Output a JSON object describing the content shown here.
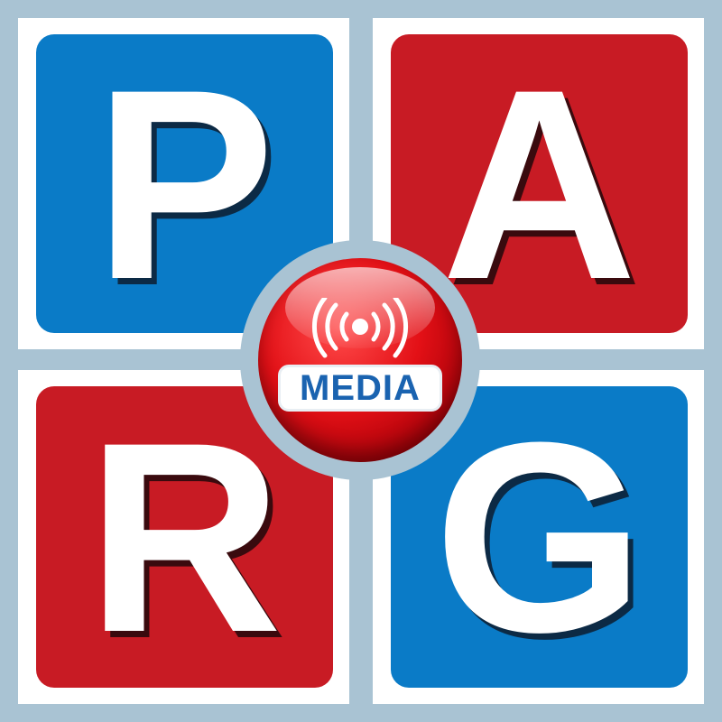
{
  "logo": {
    "letters": {
      "top_left": "P",
      "top_right": "A",
      "bottom_left": "R",
      "bottom_right": "G"
    },
    "badge": {
      "label": "MEDIA",
      "icon": "broadcast-signal-icon"
    }
  },
  "colors": {
    "blue": "#0a7bc7",
    "red": "#c81b24",
    "frame": "#a9c3d3",
    "badge_red": "#e31016",
    "badge_text": "#1a63b0"
  }
}
